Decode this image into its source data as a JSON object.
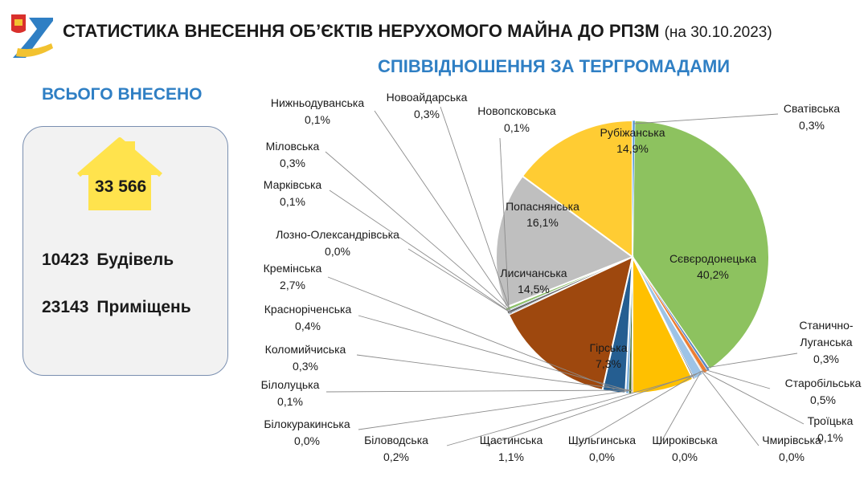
{
  "header": {
    "title": "СТАТИСТИКА ВНЕСЕННЯ ОБ’ЄКТІВ НЕРУХОМОГО МАЙНА ДО РПЗМ",
    "date": "(на 30.10.2023)",
    "subtitle": "СПІВВІДНОШЕННЯ ЗА ТЕРГРОМАДАМИ"
  },
  "summary": {
    "heading": "ВСЬОГО ВНЕСЕНО",
    "total": "33 566",
    "buildings_value": "10423",
    "buildings_label": "Будівель",
    "premises_value": "23143",
    "premises_label": "Приміщень"
  },
  "colors": {
    "accent_blue": "#2f7fc4",
    "house_yellow": "#ffe34d"
  },
  "chart_data": {
    "type": "pie",
    "slices": [
      {
        "name": "Сєвєродонецька",
        "value": 40.2,
        "label": "40,2%",
        "color": "#8dc25f"
      },
      {
        "name": "Станично-Луганська",
        "value": 0.3,
        "label": "0,3%",
        "color": "#5a86c4"
      },
      {
        "name": "Старобільська",
        "value": 0.5,
        "label": "0,5%",
        "color": "#ed7d31"
      },
      {
        "name": "Троїцька",
        "value": 0.1,
        "label": "0,1%",
        "color": "#a5a5a5"
      },
      {
        "name": "Чмирівська",
        "value": 0.0,
        "label": "0,0%",
        "color": "#ffc000"
      },
      {
        "name": "Широківська",
        "value": 0.0,
        "label": "0,0%",
        "color": "#4472c4"
      },
      {
        "name": "Шульгинська",
        "value": 0.0,
        "label": "0,0%",
        "color": "#70ad47"
      },
      {
        "name": "Щастинська",
        "value": 1.1,
        "label": "1,1%",
        "color": "#9dc3e6"
      },
      {
        "name": "Біловодська",
        "value": 0.2,
        "label": "0,2%",
        "color": "#636363"
      },
      {
        "name": "Гірська",
        "value": 7.3,
        "label": "7,3%",
        "color": "#ffc000"
      },
      {
        "name": "Білокуракинська",
        "value": 0.0,
        "label": "0,0%",
        "color": "#264478"
      },
      {
        "name": "Білолуцька",
        "value": 0.1,
        "label": "0,1%",
        "color": "#9e480e"
      },
      {
        "name": "Коломийчиська",
        "value": 0.3,
        "label": "0,3%",
        "color": "#43682b"
      },
      {
        "name": "Красноріченська",
        "value": 0.4,
        "label": "0,4%",
        "color": "#7cafdd"
      },
      {
        "name": "Кремінська",
        "value": 2.7,
        "label": "2,7%",
        "color": "#255e91"
      },
      {
        "name": "Лисичанська",
        "value": 14.5,
        "label": "14,5%",
        "color": "#9e480e"
      },
      {
        "name": "Лозно-Олександрівська",
        "value": 0.0,
        "label": "0,0%",
        "color": "#997300"
      },
      {
        "name": "Марківська",
        "value": 0.1,
        "label": "0,1%",
        "color": "#264478"
      },
      {
        "name": "Міловська",
        "value": 0.3,
        "label": "0,3%",
        "color": "#636363"
      },
      {
        "name": "Нижньодуванська",
        "value": 0.1,
        "label": "0,1%",
        "color": "#698ed0"
      },
      {
        "name": "Новоайдарська",
        "value": 0.3,
        "label": "0,3%",
        "color": "#8cc168"
      },
      {
        "name": "Новопсковська",
        "value": 0.1,
        "label": "0,1%",
        "color": "#f4b183"
      },
      {
        "name": "Попаснянська",
        "value": 16.1,
        "label": "16,1%",
        "color": "#bfbfbf"
      },
      {
        "name": "Рубіжанська",
        "value": 14.9,
        "label": "14,9%",
        "color": "#ffcc33"
      },
      {
        "name": "Сватівська",
        "value": 0.3,
        "label": "0,3%",
        "color": "#5b9bd5"
      }
    ],
    "legend": "none"
  }
}
